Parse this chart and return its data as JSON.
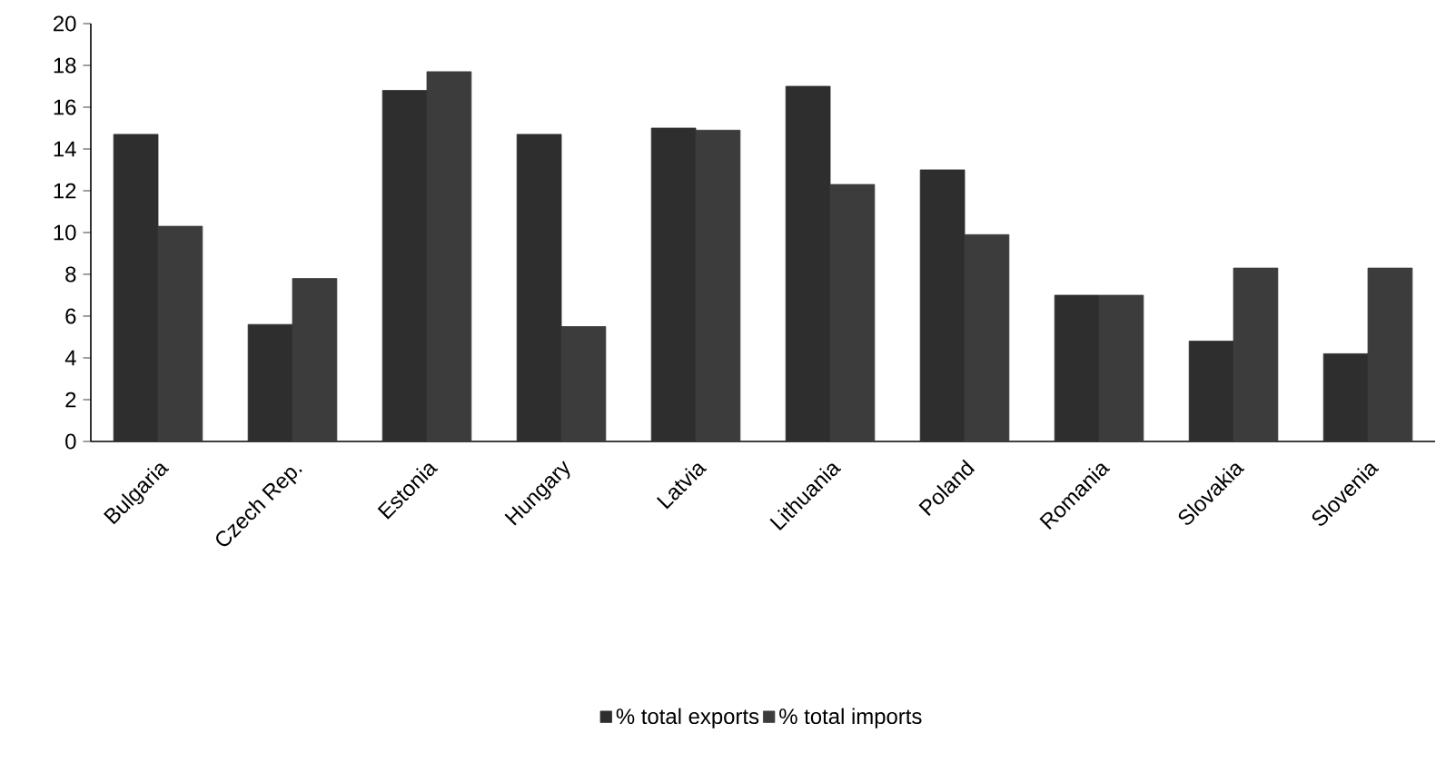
{
  "chart_data": {
    "type": "bar",
    "categories": [
      "Bulgaria",
      "Czech Rep.",
      "Estonia",
      "Hungary",
      "Latvia",
      "Lithuania",
      "Poland",
      "Romania",
      "Slovakia",
      "Slovenia"
    ],
    "series": [
      {
        "name": "% total exports",
        "color": "#2e2e2e",
        "values": [
          14.7,
          5.6,
          16.8,
          14.7,
          15.0,
          17.0,
          13.0,
          7.0,
          4.8,
          4.2
        ]
      },
      {
        "name": "% total imports",
        "color": "#3c3c3c",
        "values": [
          10.3,
          7.8,
          17.7,
          5.5,
          14.9,
          12.3,
          9.9,
          7.0,
          8.3,
          8.3
        ]
      }
    ],
    "ylim": [
      0,
      20
    ],
    "yticks": [
      0,
      2,
      4,
      6,
      8,
      10,
      12,
      14,
      16,
      18,
      20
    ],
    "legend": "bottom"
  }
}
